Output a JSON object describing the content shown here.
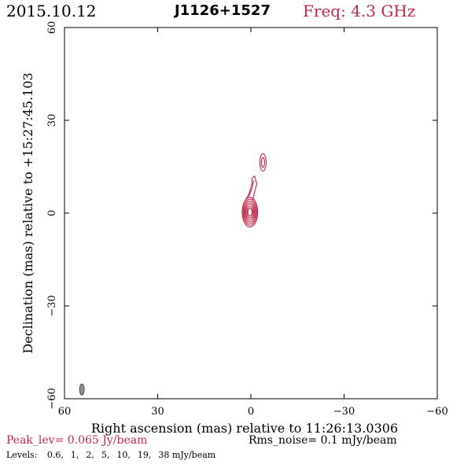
{
  "header": {
    "date": "2015.10.12",
    "source": "J1126+1527",
    "freq": "Freq: 4.3 GHz"
  },
  "chart_data": {
    "type": "contour",
    "xlabel": "Right ascension (mas) relative to 11:26:13.0306",
    "ylabel": "Declination (mas) relative to +15:27:45.103",
    "xlim": [
      60,
      -60
    ],
    "ylim": [
      -60,
      60
    ],
    "xticks": [
      60,
      30,
      0,
      -30,
      -60
    ],
    "yticks": [
      -60,
      -30,
      0,
      30,
      60
    ],
    "xtick_labels": [
      "60",
      "30",
      "0",
      "−30",
      "−60"
    ],
    "ytick_labels": [
      "−60",
      "−30",
      "0",
      "30",
      "60"
    ],
    "contour_color": "#c0284a",
    "core": {
      "center": [
        0.3,
        0.3
      ],
      "rings": [
        [
          2.5,
          4.8
        ],
        [
          2.2,
          4.2
        ],
        [
          1.9,
          3.6
        ],
        [
          1.6,
          3.0
        ],
        [
          1.3,
          2.4
        ],
        [
          1.0,
          1.8
        ],
        [
          0.7,
          1.2
        ]
      ]
    },
    "jet_paths": [
      [
        [
          1.8,
          4.0
        ],
        [
          0.5,
          6.5
        ],
        [
          -0.3,
          9.5
        ],
        [
          -0.4,
          11.2
        ],
        [
          -1.2,
          12.0
        ],
        [
          -1.9,
          9.5
        ],
        [
          -1.2,
          6.8
        ],
        [
          -0.6,
          4.2
        ]
      ],
      [
        [
          0.7,
          5.2
        ],
        [
          -0.4,
          8.2
        ],
        [
          -0.9,
          10.6
        ]
      ]
    ],
    "knot": {
      "center": [
        -3.9,
        16.4
      ],
      "rings": [
        [
          1.0,
          2.8
        ],
        [
          0.5,
          1.6
        ]
      ]
    },
    "beam": {
      "center": [
        54.4,
        -57.0
      ],
      "semi_major": 1.8,
      "semi_minor": 0.75,
      "color": "#909090"
    }
  },
  "footer": {
    "peak": "Peak_lev=  0.065 Jy/beam",
    "rms": "Rms_noise=  0.1 mJy/beam",
    "levels_label": "Levels:",
    "levels": [
      "0.6,",
      "1,",
      "2,",
      "5,",
      "10,",
      "19,",
      "38 mJy/beam"
    ]
  }
}
